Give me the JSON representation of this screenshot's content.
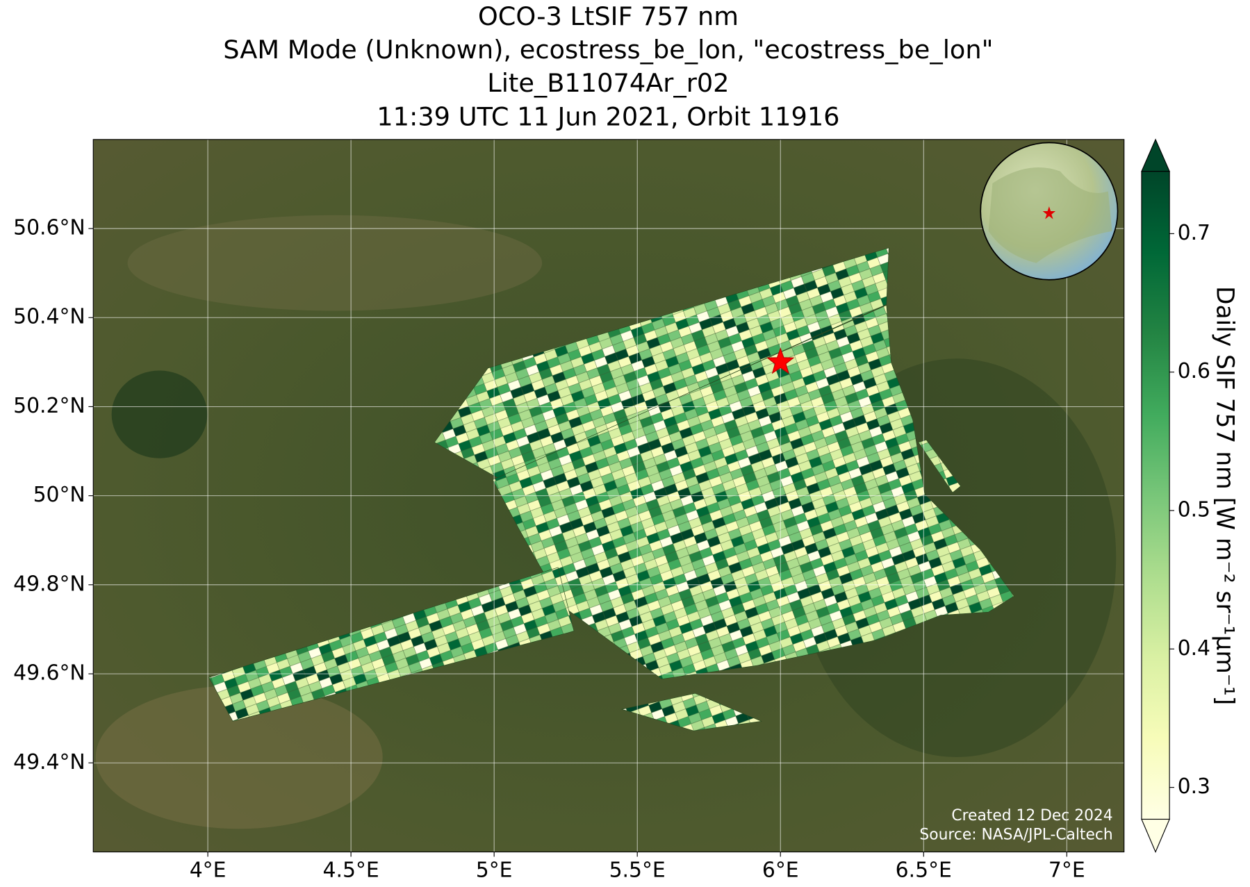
{
  "title_lines": [
    "OCO-3 LtSIF 757 nm",
    "SAM Mode (Unknown), ecostress_be_lon, \"ecostress_be_lon\"",
    "Lite_B11074Ar_r02",
    "11:39 UTC 11 Jun 2021, Orbit 11916"
  ],
  "map": {
    "lon_range": [
      3.6,
      7.2
    ],
    "lat_range": [
      49.2,
      50.8
    ],
    "lon_ticks": [
      {
        "value": 4,
        "label": "4°E"
      },
      {
        "value": 4.5,
        "label": "4.5°E"
      },
      {
        "value": 5,
        "label": "5°E"
      },
      {
        "value": 5.5,
        "label": "5.5°E"
      },
      {
        "value": 6,
        "label": "6°E"
      },
      {
        "value": 6.5,
        "label": "6.5°E"
      },
      {
        "value": 7,
        "label": "7°E"
      }
    ],
    "lat_ticks": [
      {
        "value": 49.4,
        "label": "49.4°N"
      },
      {
        "value": 49.6,
        "label": "49.6°N"
      },
      {
        "value": 49.8,
        "label": "49.8°N"
      },
      {
        "value": 50,
        "label": "50°N"
      },
      {
        "value": 50.2,
        "label": "50.2°N"
      },
      {
        "value": 50.4,
        "label": "50.4°N"
      },
      {
        "value": 50.6,
        "label": "50.6°N"
      }
    ],
    "target": {
      "lon": 6.0,
      "lat": 50.3
    }
  },
  "colorbar": {
    "label": "Daily SIF 757 nm [W m⁻² sr⁻¹μm⁻¹]",
    "range": [
      0.277,
      0.745
    ],
    "ticks": [
      0.3,
      0.4,
      0.5,
      0.6,
      0.7
    ]
  },
  "credits": [
    "Created 12 Dec 2024",
    "Source: NASA/JPL-Caltech"
  ]
}
